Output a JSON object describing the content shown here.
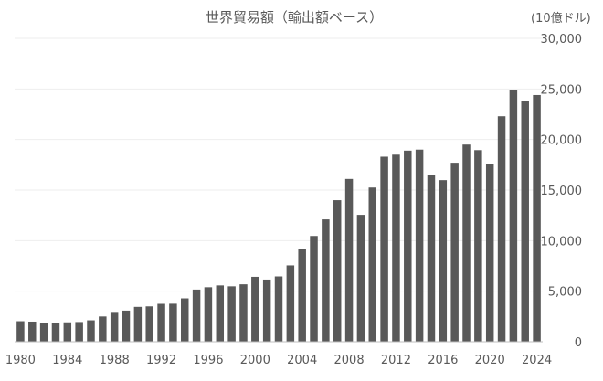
{
  "chart_data": {
    "type": "bar",
    "title": "世界貿易額（輸出額ベース）",
    "unit_label": "(10億ドル)",
    "xlabel": "",
    "ylabel": "",
    "ylim": [
      0,
      30000
    ],
    "y_ticks": [
      0,
      5000,
      10000,
      15000,
      20000,
      25000,
      30000
    ],
    "y_tick_labels": [
      "0",
      "5,000",
      "10,000",
      "15,000",
      "20,000",
      "25,000",
      "30,000"
    ],
    "y_axis_side": "right",
    "grid": true,
    "legend": "none",
    "bar_color": "#595959",
    "categories": [
      1980,
      1981,
      1982,
      1983,
      1984,
      1985,
      1986,
      1987,
      1988,
      1989,
      1990,
      1991,
      1992,
      1993,
      1994,
      1995,
      1996,
      1997,
      1998,
      1999,
      2000,
      2001,
      2002,
      2003,
      2004,
      2005,
      2006,
      2007,
      2008,
      2009,
      2010,
      2011,
      2012,
      2013,
      2014,
      2015,
      2016,
      2017,
      2018,
      2019,
      2020,
      2021,
      2022,
      2023,
      2024
    ],
    "x_tick_labels": [
      "1980",
      "1984",
      "1988",
      "1992",
      "1996",
      "2000",
      "2004",
      "2008",
      "2012",
      "2016",
      "2020",
      "2024"
    ],
    "values": [
      2030,
      1990,
      1850,
      1820,
      1920,
      1950,
      2120,
      2500,
      2860,
      3080,
      3450,
      3500,
      3750,
      3760,
      4290,
      5160,
      5390,
      5570,
      5480,
      5680,
      6420,
      6150,
      6460,
      7550,
      9190,
      10460,
      12100,
      14000,
      16100,
      12550,
      15250,
      18300,
      18500,
      18900,
      19000,
      16500,
      15980,
      17700,
      19500,
      18950,
      17600,
      22300,
      24900,
      23800,
      24400
    ]
  }
}
